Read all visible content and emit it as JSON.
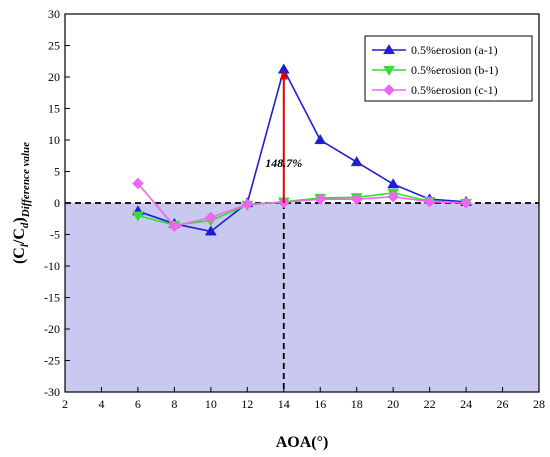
{
  "chart_data": {
    "type": "line",
    "xlabel": "AOA(°)",
    "ylabel_main": "(C",
    "ylabel_sub1": "l",
    "ylabel_mid": "/C",
    "ylabel_sub2": "d",
    "ylabel_close": ")",
    "ylabel_subscript": "Difference value",
    "xlim": [
      2,
      28
    ],
    "ylim": [
      -30,
      30
    ],
    "xticks": [
      2,
      4,
      6,
      8,
      10,
      12,
      14,
      16,
      18,
      20,
      22,
      24,
      26,
      28
    ],
    "yticks": [
      -30,
      -25,
      -20,
      -15,
      -10,
      -5,
      0,
      5,
      10,
      15,
      20,
      25,
      30
    ],
    "negative_region_color": "#c8c8f0",
    "zero_line": {
      "y": 0,
      "style": "dashed"
    },
    "marker_line": {
      "x": 14,
      "style": "dashed"
    },
    "annotation": {
      "text": "148.7%",
      "x": 14,
      "y_from": 0,
      "y_to": 21.2,
      "color": "#e00000"
    },
    "legend_position": "top-right",
    "series": [
      {
        "name": "0.5%erosion (a-1)",
        "color": "#1f1fd0",
        "marker": "triangle-up",
        "x": [
          6,
          8,
          10,
          12,
          14,
          16,
          18,
          20,
          22,
          24
        ],
        "y": [
          -1.3,
          -3.3,
          -4.5,
          0.0,
          21.2,
          10.0,
          6.5,
          3.0,
          0.6,
          0.2
        ]
      },
      {
        "name": "0.5%erosion (b-1)",
        "color": "#33dd33",
        "marker": "triangle-down",
        "x": [
          6,
          8,
          10,
          12,
          14,
          16,
          18,
          20,
          22,
          24
        ],
        "y": [
          -2.0,
          -3.5,
          -2.8,
          -0.3,
          0.2,
          0.8,
          0.9,
          1.6,
          0.3,
          0.0
        ]
      },
      {
        "name": "0.5%erosion (c-1)",
        "color": "#ee66ee",
        "marker": "diamond",
        "x": [
          6,
          8,
          10,
          12,
          14,
          16,
          18,
          20,
          22,
          24
        ],
        "y": [
          3.1,
          -3.7,
          -2.3,
          -0.2,
          0.1,
          0.6,
          0.6,
          1.0,
          0.2,
          0.0
        ]
      }
    ]
  }
}
